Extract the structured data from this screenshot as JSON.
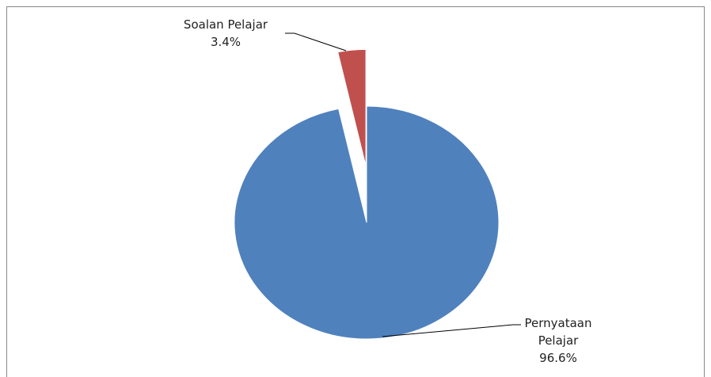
{
  "chart_data": {
    "type": "pie",
    "categories": [
      "Pernyataan Pelajar",
      "Soalan Pelajar"
    ],
    "values": [
      96.6,
      3.4
    ],
    "value_labels": [
      "96.6%",
      "3.4%"
    ],
    "colors": [
      "#4f81bd",
      "#c0504d"
    ]
  }
}
